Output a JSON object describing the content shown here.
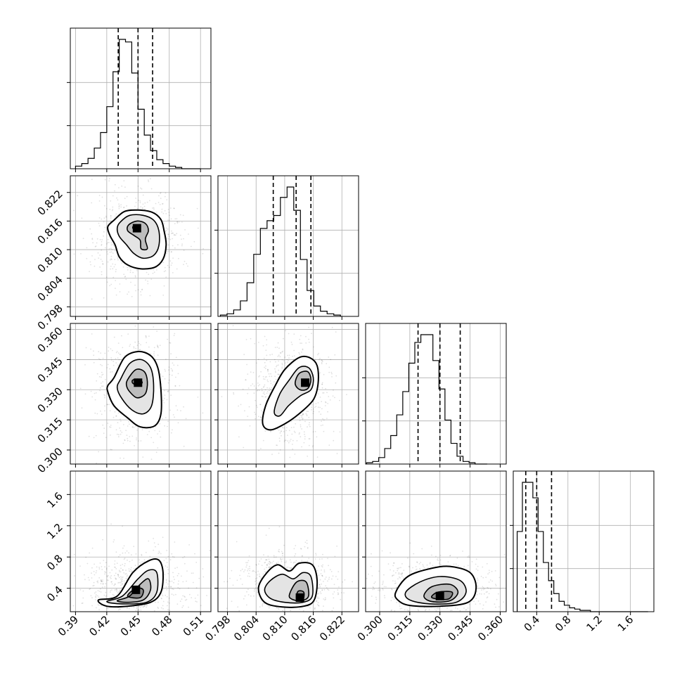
{
  "chart_data": {
    "type": "scatter",
    "kind": "corner",
    "grid": true,
    "parameters": [
      {
        "id": "p0",
        "range": [
          0.385,
          0.52
        ],
        "ticks": [
          0.39,
          0.42,
          0.45,
          0.48,
          0.51
        ],
        "tick_labels": [
          "0.39",
          "0.42",
          "0.45",
          "0.48",
          "0.51"
        ]
      },
      {
        "id": "p1",
        "range": [
          0.796,
          0.8255
        ],
        "ticks": [
          0.798,
          0.804,
          0.81,
          0.816,
          0.822
        ],
        "tick_labels": [
          "0.798",
          "0.804",
          "0.810",
          "0.816",
          "0.822"
        ]
      },
      {
        "id": "p2",
        "range": [
          0.293,
          0.363
        ],
        "ticks": [
          0.3,
          0.315,
          0.33,
          0.345,
          0.36
        ],
        "tick_labels": [
          "0.300",
          "0.315",
          "0.330",
          "0.345",
          "0.360"
        ]
      },
      {
        "id": "p3",
        "range": [
          0.1,
          1.9
        ],
        "ticks": [
          0.4,
          0.8,
          1.2,
          1.6
        ],
        "tick_labels": [
          "0.4",
          "0.8",
          "1.2",
          "1.6"
        ]
      }
    ],
    "histograms": [
      {
        "param": "p0",
        "bin_start": 0.39,
        "bin_width": 0.006,
        "counts": [
          2,
          4,
          8,
          16,
          28,
          48,
          75,
          100,
          98,
          74,
          46,
          26,
          14,
          7,
          4,
          2,
          1,
          0,
          0,
          0
        ],
        "quantiles": [
          0.431,
          0.45,
          0.464
        ]
      },
      {
        "param": "p1",
        "bin_start": 0.7965,
        "bin_width": 0.0014,
        "counts": [
          1,
          2,
          5,
          12,
          26,
          48,
          68,
          74,
          78,
          92,
          100,
          82,
          44,
          20,
          8,
          4,
          2,
          1
        ],
        "quantiles": [
          0.8076,
          0.8124,
          0.8155
        ]
      },
      {
        "param": "p2",
        "bin_start": 0.2935,
        "bin_width": 0.003,
        "counts": [
          1,
          2,
          5,
          12,
          22,
          38,
          56,
          78,
          94,
          100,
          100,
          80,
          58,
          34,
          16,
          6,
          2,
          1,
          0,
          0
        ],
        "quantiles": [
          0.3191,
          0.33,
          0.3401
        ]
      },
      {
        "param": "p3",
        "bin_start": 0.15,
        "bin_width": 0.067,
        "counts": [
          62,
          100,
          100,
          88,
          62,
          38,
          24,
          14,
          8,
          5,
          3,
          2,
          1,
          1,
          0,
          0,
          0,
          0,
          0,
          0,
          0,
          0,
          0,
          0,
          0
        ],
        "quantiles": [
          0.26,
          0.4,
          0.59
        ]
      }
    ],
    "pairs": [
      {
        "x": "p0",
        "y": "p1",
        "peak": [
          0.449,
          0.8145
        ],
        "levels": [
          [
            [
              0.427,
              0.8162
            ],
            [
              0.437,
              0.818
            ],
            [
              0.45,
              0.8183
            ],
            [
              0.464,
              0.8178
            ],
            [
              0.472,
              0.8163
            ],
            [
              0.475,
              0.814
            ],
            [
              0.477,
              0.811
            ],
            [
              0.474,
              0.808
            ],
            [
              0.466,
              0.8063
            ],
            [
              0.452,
              0.806
            ],
            [
              0.44,
              0.8068
            ],
            [
              0.432,
              0.8085
            ],
            [
              0.428,
              0.811
            ],
            [
              0.423,
              0.813
            ],
            [
              0.421,
              0.8148
            ]
          ],
          [
            [
              0.433,
              0.8158
            ],
            [
              0.442,
              0.8172
            ],
            [
              0.455,
              0.8172
            ],
            [
              0.465,
              0.8162
            ],
            [
              0.47,
              0.814
            ],
            [
              0.47,
              0.8108
            ],
            [
              0.465,
              0.8088
            ],
            [
              0.455,
              0.8082
            ],
            [
              0.446,
              0.8092
            ],
            [
              0.439,
              0.811
            ],
            [
              0.432,
              0.8128
            ],
            [
              0.43,
              0.8145
            ]
          ],
          [
            [
              0.441,
              0.8152
            ],
            [
              0.449,
              0.816
            ],
            [
              0.457,
              0.8155
            ],
            [
              0.46,
              0.814
            ],
            [
              0.457,
              0.8122
            ],
            [
              0.459,
              0.8102
            ],
            [
              0.453,
              0.8102
            ],
            [
              0.452,
              0.812
            ],
            [
              0.446,
              0.813
            ],
            [
              0.44,
              0.814
            ]
          ],
          [
            [
              0.446,
              0.815
            ],
            [
              0.451,
              0.815
            ],
            [
              0.452,
              0.8144
            ],
            [
              0.448,
              0.814
            ],
            [
              0.445,
              0.8145
            ]
          ]
        ]
      },
      {
        "x": "p0",
        "y": "p2",
        "peak": [
          0.45,
          0.3335
        ],
        "levels": [
          [
            [
              0.427,
              0.336
            ],
            [
              0.437,
              0.346
            ],
            [
              0.45,
              0.349
            ],
            [
              0.462,
              0.347
            ],
            [
              0.469,
              0.341
            ],
            [
              0.472,
              0.33
            ],
            [
              0.472,
              0.318
            ],
            [
              0.466,
              0.312
            ],
            [
              0.452,
              0.3115
            ],
            [
              0.44,
              0.316
            ],
            [
              0.427,
              0.322
            ],
            [
              0.421,
              0.329
            ],
            [
              0.421,
              0.332
            ]
          ],
          [
            [
              0.433,
              0.335
            ],
            [
              0.442,
              0.343
            ],
            [
              0.453,
              0.345
            ],
            [
              0.462,
              0.341
            ],
            [
              0.465,
              0.332
            ],
            [
              0.463,
              0.322
            ],
            [
              0.455,
              0.318
            ],
            [
              0.444,
              0.32
            ],
            [
              0.434,
              0.326
            ],
            [
              0.43,
              0.331
            ]
          ],
          [
            [
              0.44,
              0.335
            ],
            [
              0.448,
              0.34
            ],
            [
              0.456,
              0.339
            ],
            [
              0.459,
              0.334
            ],
            [
              0.457,
              0.328
            ],
            [
              0.449,
              0.326
            ],
            [
              0.442,
              0.329
            ],
            [
              0.439,
              0.332
            ]
          ],
          [
            [
              0.445,
              0.3348
            ],
            [
              0.451,
              0.3352
            ],
            [
              0.454,
              0.3335
            ],
            [
              0.45,
              0.3322
            ],
            [
              0.445,
              0.3332
            ]
          ]
        ]
      },
      {
        "x": "p1",
        "y": "p2",
        "peak": [
          0.8143,
          0.3335
        ],
        "levels": [
          [
            [
              0.8054,
              0.313
            ],
            [
              0.806,
              0.322
            ],
            [
              0.808,
              0.332
            ],
            [
              0.81,
              0.34
            ],
            [
              0.813,
              0.346
            ],
            [
              0.8152,
              0.346
            ],
            [
              0.8168,
              0.342
            ],
            [
              0.817,
              0.333
            ],
            [
              0.816,
              0.325
            ],
            [
              0.813,
              0.318
            ],
            [
              0.81,
              0.313
            ],
            [
              0.807,
              0.31
            ]
          ],
          [
            [
              0.8078,
              0.319
            ],
            [
              0.809,
              0.328
            ],
            [
              0.811,
              0.335
            ],
            [
              0.813,
              0.341
            ],
            [
              0.815,
              0.341
            ],
            [
              0.816,
              0.336
            ],
            [
              0.8155,
              0.33
            ],
            [
              0.8133,
              0.327
            ],
            [
              0.8108,
              0.322
            ],
            [
              0.809,
              0.317
            ]
          ],
          [
            [
              0.8122,
              0.333
            ],
            [
              0.813,
              0.338
            ],
            [
              0.8148,
              0.339
            ],
            [
              0.8155,
              0.335
            ],
            [
              0.8148,
              0.3305
            ],
            [
              0.8132,
              0.33
            ]
          ],
          [
            [
              0.8137,
              0.334
            ],
            [
              0.8145,
              0.335
            ],
            [
              0.815,
              0.3335
            ],
            [
              0.8143,
              0.3322
            ],
            [
              0.8136,
              0.3328
            ]
          ]
        ]
      },
      {
        "x": "p0",
        "y": "p3",
        "peak": [
          0.448,
          0.38
        ],
        "levels": [
          [
            [
              0.412,
              0.25
            ],
            [
              0.43,
              0.3
            ],
            [
              0.445,
              0.6
            ],
            [
              0.46,
              0.75
            ],
            [
              0.47,
              0.76
            ],
            [
              0.474,
              0.6
            ],
            [
              0.472,
              0.35
            ],
            [
              0.462,
              0.22
            ],
            [
              0.44,
              0.17
            ],
            [
              0.42,
              0.17
            ]
          ],
          [
            [
              0.42,
              0.23
            ],
            [
              0.435,
              0.3
            ],
            [
              0.45,
              0.52
            ],
            [
              0.46,
              0.63
            ],
            [
              0.468,
              0.6
            ],
            [
              0.468,
              0.35
            ],
            [
              0.458,
              0.22
            ],
            [
              0.435,
              0.2
            ]
          ],
          [
            [
              0.43,
              0.24
            ],
            [
              0.442,
              0.3
            ],
            [
              0.452,
              0.45
            ],
            [
              0.46,
              0.52
            ],
            [
              0.462,
              0.38
            ],
            [
              0.455,
              0.25
            ],
            [
              0.44,
              0.22
            ]
          ],
          [
            [
              0.44,
              0.3
            ],
            [
              0.448,
              0.4
            ],
            [
              0.455,
              0.38
            ],
            [
              0.452,
              0.28
            ]
          ]
        ]
      },
      {
        "x": "p1",
        "y": "p3",
        "peak": [
          0.8132,
          0.28
        ],
        "levels": [
          [
            [
              0.8045,
              0.4
            ],
            [
              0.806,
              0.58
            ],
            [
              0.8085,
              0.7
            ],
            [
              0.811,
              0.62
            ],
            [
              0.813,
              0.72
            ],
            [
              0.8158,
              0.7
            ],
            [
              0.8168,
              0.5
            ],
            [
              0.8162,
              0.25
            ],
            [
              0.814,
              0.17
            ],
            [
              0.8095,
              0.16
            ],
            [
              0.8058,
              0.22
            ]
          ],
          [
            [
              0.8058,
              0.38
            ],
            [
              0.807,
              0.5
            ],
            [
              0.8095,
              0.58
            ],
            [
              0.8118,
              0.52
            ],
            [
              0.8138,
              0.6
            ],
            [
              0.8155,
              0.55
            ],
            [
              0.8158,
              0.3
            ],
            [
              0.8138,
              0.22
            ],
            [
              0.81,
              0.22
            ],
            [
              0.807,
              0.27
            ]
          ],
          [
            [
              0.811,
              0.32
            ],
            [
              0.8125,
              0.48
            ],
            [
              0.8145,
              0.48
            ],
            [
              0.815,
              0.3
            ],
            [
              0.8135,
              0.24
            ],
            [
              0.8115,
              0.26
            ]
          ],
          [
            [
              0.8125,
              0.26
            ],
            [
              0.8128,
              0.36
            ],
            [
              0.814,
              0.35
            ],
            [
              0.8138,
              0.25
            ]
          ]
        ]
      },
      {
        "x": "p2",
        "y": "p3",
        "peak": [
          0.33,
          0.3
        ],
        "levels": [
          [
            [
              0.308,
              0.35
            ],
            [
              0.314,
              0.55
            ],
            [
              0.325,
              0.65
            ],
            [
              0.335,
              0.68
            ],
            [
              0.345,
              0.6
            ],
            [
              0.348,
              0.4
            ],
            [
              0.344,
              0.22
            ],
            [
              0.33,
              0.17
            ],
            [
              0.315,
              0.18
            ],
            [
              0.309,
              0.25
            ]
          ],
          [
            [
              0.313,
              0.35
            ],
            [
              0.32,
              0.48
            ],
            [
              0.33,
              0.55
            ],
            [
              0.34,
              0.5
            ],
            [
              0.343,
              0.35
            ],
            [
              0.338,
              0.22
            ],
            [
              0.325,
              0.2
            ],
            [
              0.315,
              0.25
            ]
          ],
          [
            [
              0.322,
              0.3
            ],
            [
              0.326,
              0.42
            ],
            [
              0.335,
              0.45
            ],
            [
              0.339,
              0.35
            ],
            [
              0.335,
              0.24
            ],
            [
              0.326,
              0.23
            ]
          ],
          [
            [
              0.326,
              0.28
            ],
            [
              0.329,
              0.35
            ],
            [
              0.336,
              0.35
            ],
            [
              0.334,
              0.26
            ]
          ]
        ]
      }
    ]
  }
}
